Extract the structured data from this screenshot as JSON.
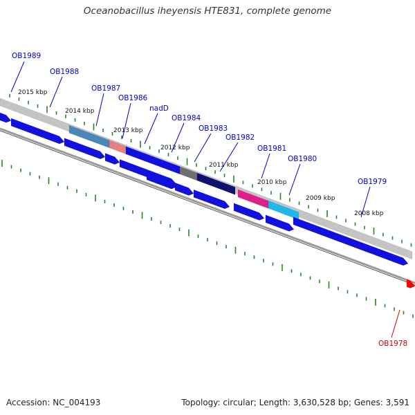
{
  "title": "Oceanobacillus iheyensis HTE831, complete genome",
  "footer": {
    "accession": "Accession: NC_004193",
    "summary": "Topology: circular; Length: 3,630,528 bp; Genes: 3,591"
  },
  "colors": {
    "forward_gene": "#1010e0",
    "backbone": "#8a8a8a",
    "tick": "#228822",
    "label_blue": "#0000cc",
    "label_red": "#cc0000",
    "red_gene": "#ff0000",
    "steel_gene": "#4a86b8",
    "salmon_gene": "#e88080",
    "gray_gene": "#6e6e6e",
    "navy_gene": "#101070",
    "magenta_gene": "#e0208a",
    "cyan_gene": "#20b8e8"
  },
  "scale_labels": [
    "2015 kbp",
    "2014 kbp",
    "2013 kbp",
    "2012 kbp",
    "2011 kbp",
    "2010 kbp",
    "2009 kbp",
    "2008 kbp"
  ],
  "gene_labels": [
    {
      "name": "OB1989",
      "color": "blue"
    },
    {
      "name": "OB1988",
      "color": "blue"
    },
    {
      "name": "OB1987",
      "color": "blue"
    },
    {
      "name": "OB1986",
      "color": "blue"
    },
    {
      "name": "nadD",
      "color": "blue"
    },
    {
      "name": "OB1984",
      "color": "blue"
    },
    {
      "name": "OB1983",
      "color": "blue"
    },
    {
      "name": "OB1982",
      "color": "blue"
    },
    {
      "name": "OB1981",
      "color": "blue"
    },
    {
      "name": "OB1980",
      "color": "blue"
    },
    {
      "name": "OB1979",
      "color": "blue"
    },
    {
      "name": "OB1978",
      "color": "red"
    }
  ]
}
